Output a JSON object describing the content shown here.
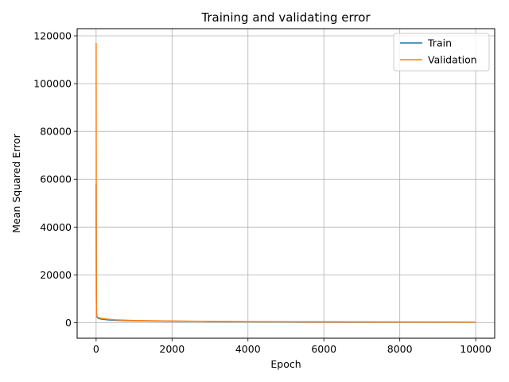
{
  "chart_data": {
    "type": "line",
    "title": "Training and validating error",
    "xlabel": "Epoch",
    "ylabel": "Mean Squared Error",
    "xlim": [
      -500,
      10500
    ],
    "ylim": [
      -6500,
      123000
    ],
    "xticks": [
      0,
      2000,
      4000,
      6000,
      8000,
      10000
    ],
    "yticks": [
      0,
      20000,
      40000,
      60000,
      80000,
      100000,
      120000
    ],
    "grid": true,
    "legend_position": "top-right",
    "series": [
      {
        "name": "Train",
        "color": "#1f77b4",
        "x": [
          0,
          5,
          10,
          20,
          40,
          80,
          150,
          300,
          500,
          1000,
          2000,
          3000,
          4000,
          5000,
          6000,
          7000,
          8000,
          9000,
          10000
        ],
        "y": [
          58000,
          12000,
          3500,
          2500,
          2000,
          1700,
          1500,
          1200,
          1000,
          800,
          600,
          500,
          400,
          350,
          320,
          300,
          280,
          260,
          250
        ]
      },
      {
        "name": "Validation",
        "color": "#ff7f0e",
        "x": [
          0,
          5,
          10,
          20,
          40,
          80,
          150,
          300,
          500,
          1000,
          2000,
          3000,
          4000,
          5000,
          6000,
          7000,
          8000,
          9000,
          10000
        ],
        "y": [
          117000,
          30000,
          3800,
          2800,
          2300,
          2000,
          1800,
          1500,
          1200,
          900,
          700,
          550,
          450,
          400,
          350,
          330,
          300,
          280,
          260
        ]
      }
    ]
  }
}
